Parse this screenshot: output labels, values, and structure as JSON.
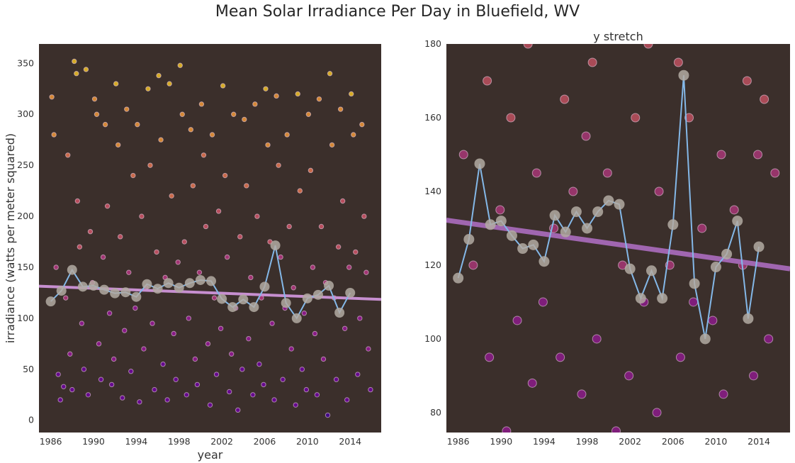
{
  "figure_title": "Mean Solar Irradiance Per Day in Bluefield, WV",
  "chart_data": [
    {
      "type": "scatter",
      "title": "",
      "xlabel": "year",
      "ylabel": "irradiance (watts per meter squared)",
      "xlim": [
        1984.9,
        2016.9
      ],
      "ylim": [
        -12,
        369
      ],
      "xticks": [
        "1986",
        "1990",
        "1994",
        "1998",
        "2002",
        "2006",
        "2010",
        "2014"
      ],
      "yticks": [
        0,
        50,
        100,
        150,
        200,
        250,
        300,
        350
      ],
      "background": "#3b2f2b",
      "colormap": "plasma",
      "grid": false,
      "trend_line": {
        "x": [
          1984.9,
          2016.9
        ],
        "y": [
          131.5,
          118.5
        ],
        "color": "#c78fd0"
      },
      "yearly_mean_color": "#84b8e8",
      "marker_color": "#b3aaa2"
    },
    {
      "type": "scatter",
      "title": "y stretch",
      "xlabel": "",
      "ylabel": "",
      "xlim": [
        1984.9,
        2016.9
      ],
      "ylim": [
        74.6,
        180
      ],
      "xticks": [
        "1986",
        "1990",
        "1994",
        "1998",
        "2002",
        "2006",
        "2010",
        "2014"
      ],
      "yticks": [
        80,
        100,
        120,
        140,
        160,
        180
      ],
      "background": "#3b2f2b",
      "colormap": "plasma",
      "grid": false,
      "trend_line": {
        "x": [
          1984.9,
          2016.9
        ],
        "y": [
          132.2,
          119
        ],
        "color": "#a066b0"
      },
      "yearly_mean_color": "#84b8e8",
      "marker_color": "#b3aaa2"
    }
  ],
  "yearly_means": {
    "x": [
      1986,
      1987,
      1988,
      1989,
      1990,
      1991,
      1992,
      1993,
      1994,
      1995,
      1996,
      1997,
      1998,
      1999,
      2000,
      2001,
      2002,
      2003,
      2004,
      2005,
      2006,
      2007,
      2008,
      2009,
      2010,
      2011,
      2012,
      2013,
      2014
    ],
    "y": [
      116.5,
      127,
      147.5,
      131,
      132,
      128,
      124.5,
      125.5,
      121,
      133.5,
      129,
      134.5,
      130,
      134.5,
      137.5,
      136.5,
      119,
      111,
      118.5,
      111,
      131,
      171.5,
      115,
      100,
      119.5,
      123,
      132,
      105.5,
      125
    ]
  },
  "daily_points": [
    [
      1986.1,
      317
    ],
    [
      1986.3,
      280
    ],
    [
      1986.5,
      150
    ],
    [
      1986.7,
      45
    ],
    [
      1986.9,
      20
    ],
    [
      1987.2,
      33
    ],
    [
      1987.4,
      120
    ],
    [
      1987.6,
      260
    ],
    [
      1987.8,
      65
    ],
    [
      1988.0,
      30
    ],
    [
      1988.2,
      352
    ],
    [
      1988.4,
      340
    ],
    [
      1988.5,
      215
    ],
    [
      1988.7,
      170
    ],
    [
      1988.9,
      95
    ],
    [
      1989.1,
      50
    ],
    [
      1989.3,
      344
    ],
    [
      1989.5,
      25
    ],
    [
      1989.7,
      185
    ],
    [
      1989.9,
      135
    ],
    [
      1990.1,
      315
    ],
    [
      1990.3,
      300
    ],
    [
      1990.5,
      75
    ],
    [
      1990.7,
      40
    ],
    [
      1990.9,
      160
    ],
    [
      1991.1,
      290
    ],
    [
      1991.3,
      210
    ],
    [
      1991.5,
      105
    ],
    [
      1991.7,
      35
    ],
    [
      1991.9,
      60
    ],
    [
      1992.1,
      330
    ],
    [
      1992.3,
      270
    ],
    [
      1992.5,
      180
    ],
    [
      1992.7,
      22
    ],
    [
      1992.9,
      88
    ],
    [
      1993.1,
      305
    ],
    [
      1993.3,
      145
    ],
    [
      1993.5,
      48
    ],
    [
      1993.7,
      240
    ],
    [
      1993.9,
      110
    ],
    [
      1994.1,
      290
    ],
    [
      1994.3,
      18
    ],
    [
      1994.5,
      200
    ],
    [
      1994.7,
      70
    ],
    [
      1994.9,
      130
    ],
    [
      1995.1,
      325
    ],
    [
      1995.3,
      250
    ],
    [
      1995.5,
      95
    ],
    [
      1995.7,
      30
    ],
    [
      1995.9,
      165
    ],
    [
      1996.1,
      338
    ],
    [
      1996.3,
      275
    ],
    [
      1996.5,
      55
    ],
    [
      1996.7,
      140
    ],
    [
      1996.9,
      20
    ],
    [
      1997.1,
      330
    ],
    [
      1997.3,
      220
    ],
    [
      1997.5,
      85
    ],
    [
      1997.7,
      40
    ],
    [
      1997.9,
      155
    ],
    [
      1998.1,
      348
    ],
    [
      1998.3,
      300
    ],
    [
      1998.5,
      175
    ],
    [
      1998.7,
      25
    ],
    [
      1998.9,
      100
    ],
    [
      1999.1,
      285
    ],
    [
      1999.3,
      230
    ],
    [
      1999.5,
      60
    ],
    [
      1999.7,
      35
    ],
    [
      1999.9,
      145
    ],
    [
      2000.1,
      310
    ],
    [
      2000.3,
      260
    ],
    [
      2000.5,
      190
    ],
    [
      2000.7,
      75
    ],
    [
      2000.9,
      15
    ],
    [
      2001.1,
      280
    ],
    [
      2001.3,
      120
    ],
    [
      2001.5,
      45
    ],
    [
      2001.7,
      205
    ],
    [
      2001.9,
      90
    ],
    [
      2002.1,
      328
    ],
    [
      2002.3,
      240
    ],
    [
      2002.5,
      160
    ],
    [
      2002.7,
      28
    ],
    [
      2002.9,
      65
    ],
    [
      2003.1,
      300
    ],
    [
      2003.3,
      110
    ],
    [
      2003.5,
      10
    ],
    [
      2003.7,
      180
    ],
    [
      2003.9,
      50
    ],
    [
      2004.1,
      295
    ],
    [
      2004.3,
      230
    ],
    [
      2004.5,
      80
    ],
    [
      2004.7,
      140
    ],
    [
      2004.9,
      25
    ],
    [
      2005.1,
      310
    ],
    [
      2005.3,
      200
    ],
    [
      2005.5,
      55
    ],
    [
      2005.7,
      120
    ],
    [
      2005.9,
      35
    ],
    [
      2006.1,
      325
    ],
    [
      2006.3,
      270
    ],
    [
      2006.5,
      175
    ],
    [
      2006.7,
      95
    ],
    [
      2006.9,
      20
    ],
    [
      2007.1,
      318
    ],
    [
      2007.3,
      250
    ],
    [
      2007.5,
      160
    ],
    [
      2007.7,
      40
    ],
    [
      2007.9,
      110
    ],
    [
      2008.1,
      280
    ],
    [
      2008.3,
      190
    ],
    [
      2008.5,
      70
    ],
    [
      2008.7,
      130
    ],
    [
      2008.9,
      15
    ],
    [
      2009.1,
      320
    ],
    [
      2009.3,
      225
    ],
    [
      2009.5,
      50
    ],
    [
      2009.7,
      105
    ],
    [
      2009.9,
      30
    ],
    [
      2010.1,
      300
    ],
    [
      2010.3,
      245
    ],
    [
      2010.5,
      150
    ],
    [
      2010.7,
      85
    ],
    [
      2010.9,
      25
    ],
    [
      2011.1,
      315
    ],
    [
      2011.3,
      190
    ],
    [
      2011.5,
      60
    ],
    [
      2011.7,
      135
    ],
    [
      2011.9,
      5
    ],
    [
      2012.1,
      340
    ],
    [
      2012.3,
      270
    ],
    [
      2012.5,
      120
    ],
    [
      2012.7,
      40
    ],
    [
      2012.9,
      170
    ],
    [
      2013.1,
      305
    ],
    [
      2013.3,
      215
    ],
    [
      2013.5,
      90
    ],
    [
      2013.7,
      20
    ],
    [
      2013.9,
      150
    ],
    [
      2014.1,
      320
    ],
    [
      2014.3,
      280
    ],
    [
      2014.5,
      165
    ],
    [
      2014.7,
      45
    ],
    [
      2014.9,
      100
    ],
    [
      2015.1,
      290
    ],
    [
      2015.3,
      200
    ],
    [
      2015.5,
      145
    ],
    [
      2015.7,
      70
    ],
    [
      2015.9,
      30
    ]
  ]
}
